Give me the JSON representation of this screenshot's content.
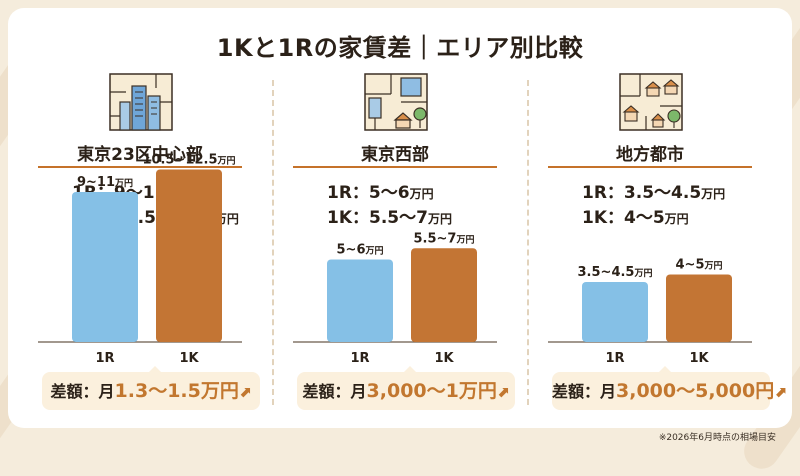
{
  "title": "1Kと1Rの家賃差｜エリア別比較",
  "footnote": "※2026年6月時点の相場目安",
  "colors": {
    "r1": "#85c0e6",
    "k1": "#c37534",
    "accent": "#c2772f",
    "bg": "#f5ecdc"
  },
  "regions": [
    {
      "name": "東京23区中心部",
      "icon": "city-buildings-icon",
      "r1_text": "1R：9〜11",
      "k1_text": "1K：10.5〜12.5",
      "unit": "万円",
      "diff_prefix": "差額：月",
      "diff_value": "1.3〜1.5",
      "diff_unit": "万円",
      "arrow": "⬈"
    },
    {
      "name": "東京西部",
      "icon": "suburban-town-icon",
      "r1_text": "1R：5〜6",
      "k1_text": "1K：5.5〜7",
      "unit": "万円",
      "diff_prefix": "差額：月",
      "diff_value": "3,000〜1",
      "diff_unit": "万円",
      "arrow": "⬈"
    },
    {
      "name": "地方都市",
      "icon": "houses-map-icon",
      "r1_text": "1R：3.5〜4.5",
      "k1_text": "1K：4〜5",
      "unit": "万円",
      "diff_prefix": "差額：月",
      "diff_value": "3,000〜5,000",
      "diff_unit": "円",
      "arrow": "⬈"
    }
  ],
  "chart_data": [
    {
      "type": "bar",
      "categories": [
        "1R",
        "1K"
      ],
      "values": [
        10,
        11.5
      ],
      "ranges": [
        [
          9,
          11
        ],
        [
          10.5,
          12.5
        ]
      ],
      "data_labels": [
        {
          "range": "9~11",
          "unit": "万円"
        },
        {
          "range": "10.5~12.5",
          "unit": "万円"
        }
      ],
      "ylim": [
        0,
        12
      ]
    },
    {
      "type": "bar",
      "categories": [
        "1R",
        "1K"
      ],
      "values": [
        5.5,
        6.25
      ],
      "ranges": [
        [
          5,
          6
        ],
        [
          5.5,
          7
        ]
      ],
      "data_labels": [
        {
          "range": "5~6",
          "unit": "万円"
        },
        {
          "range": "5.5~7",
          "unit": "万円"
        }
      ],
      "ylim": [
        0,
        12
      ]
    },
    {
      "type": "bar",
      "categories": [
        "1R",
        "1K"
      ],
      "values": [
        4,
        4.5
      ],
      "ranges": [
        [
          3.5,
          4.5
        ],
        [
          4,
          5
        ]
      ],
      "data_labels": [
        {
          "range": "3.5~4.5",
          "unit": "万円"
        },
        {
          "range": "4~5",
          "unit": "万円"
        }
      ],
      "ylim": [
        0,
        12
      ]
    }
  ]
}
